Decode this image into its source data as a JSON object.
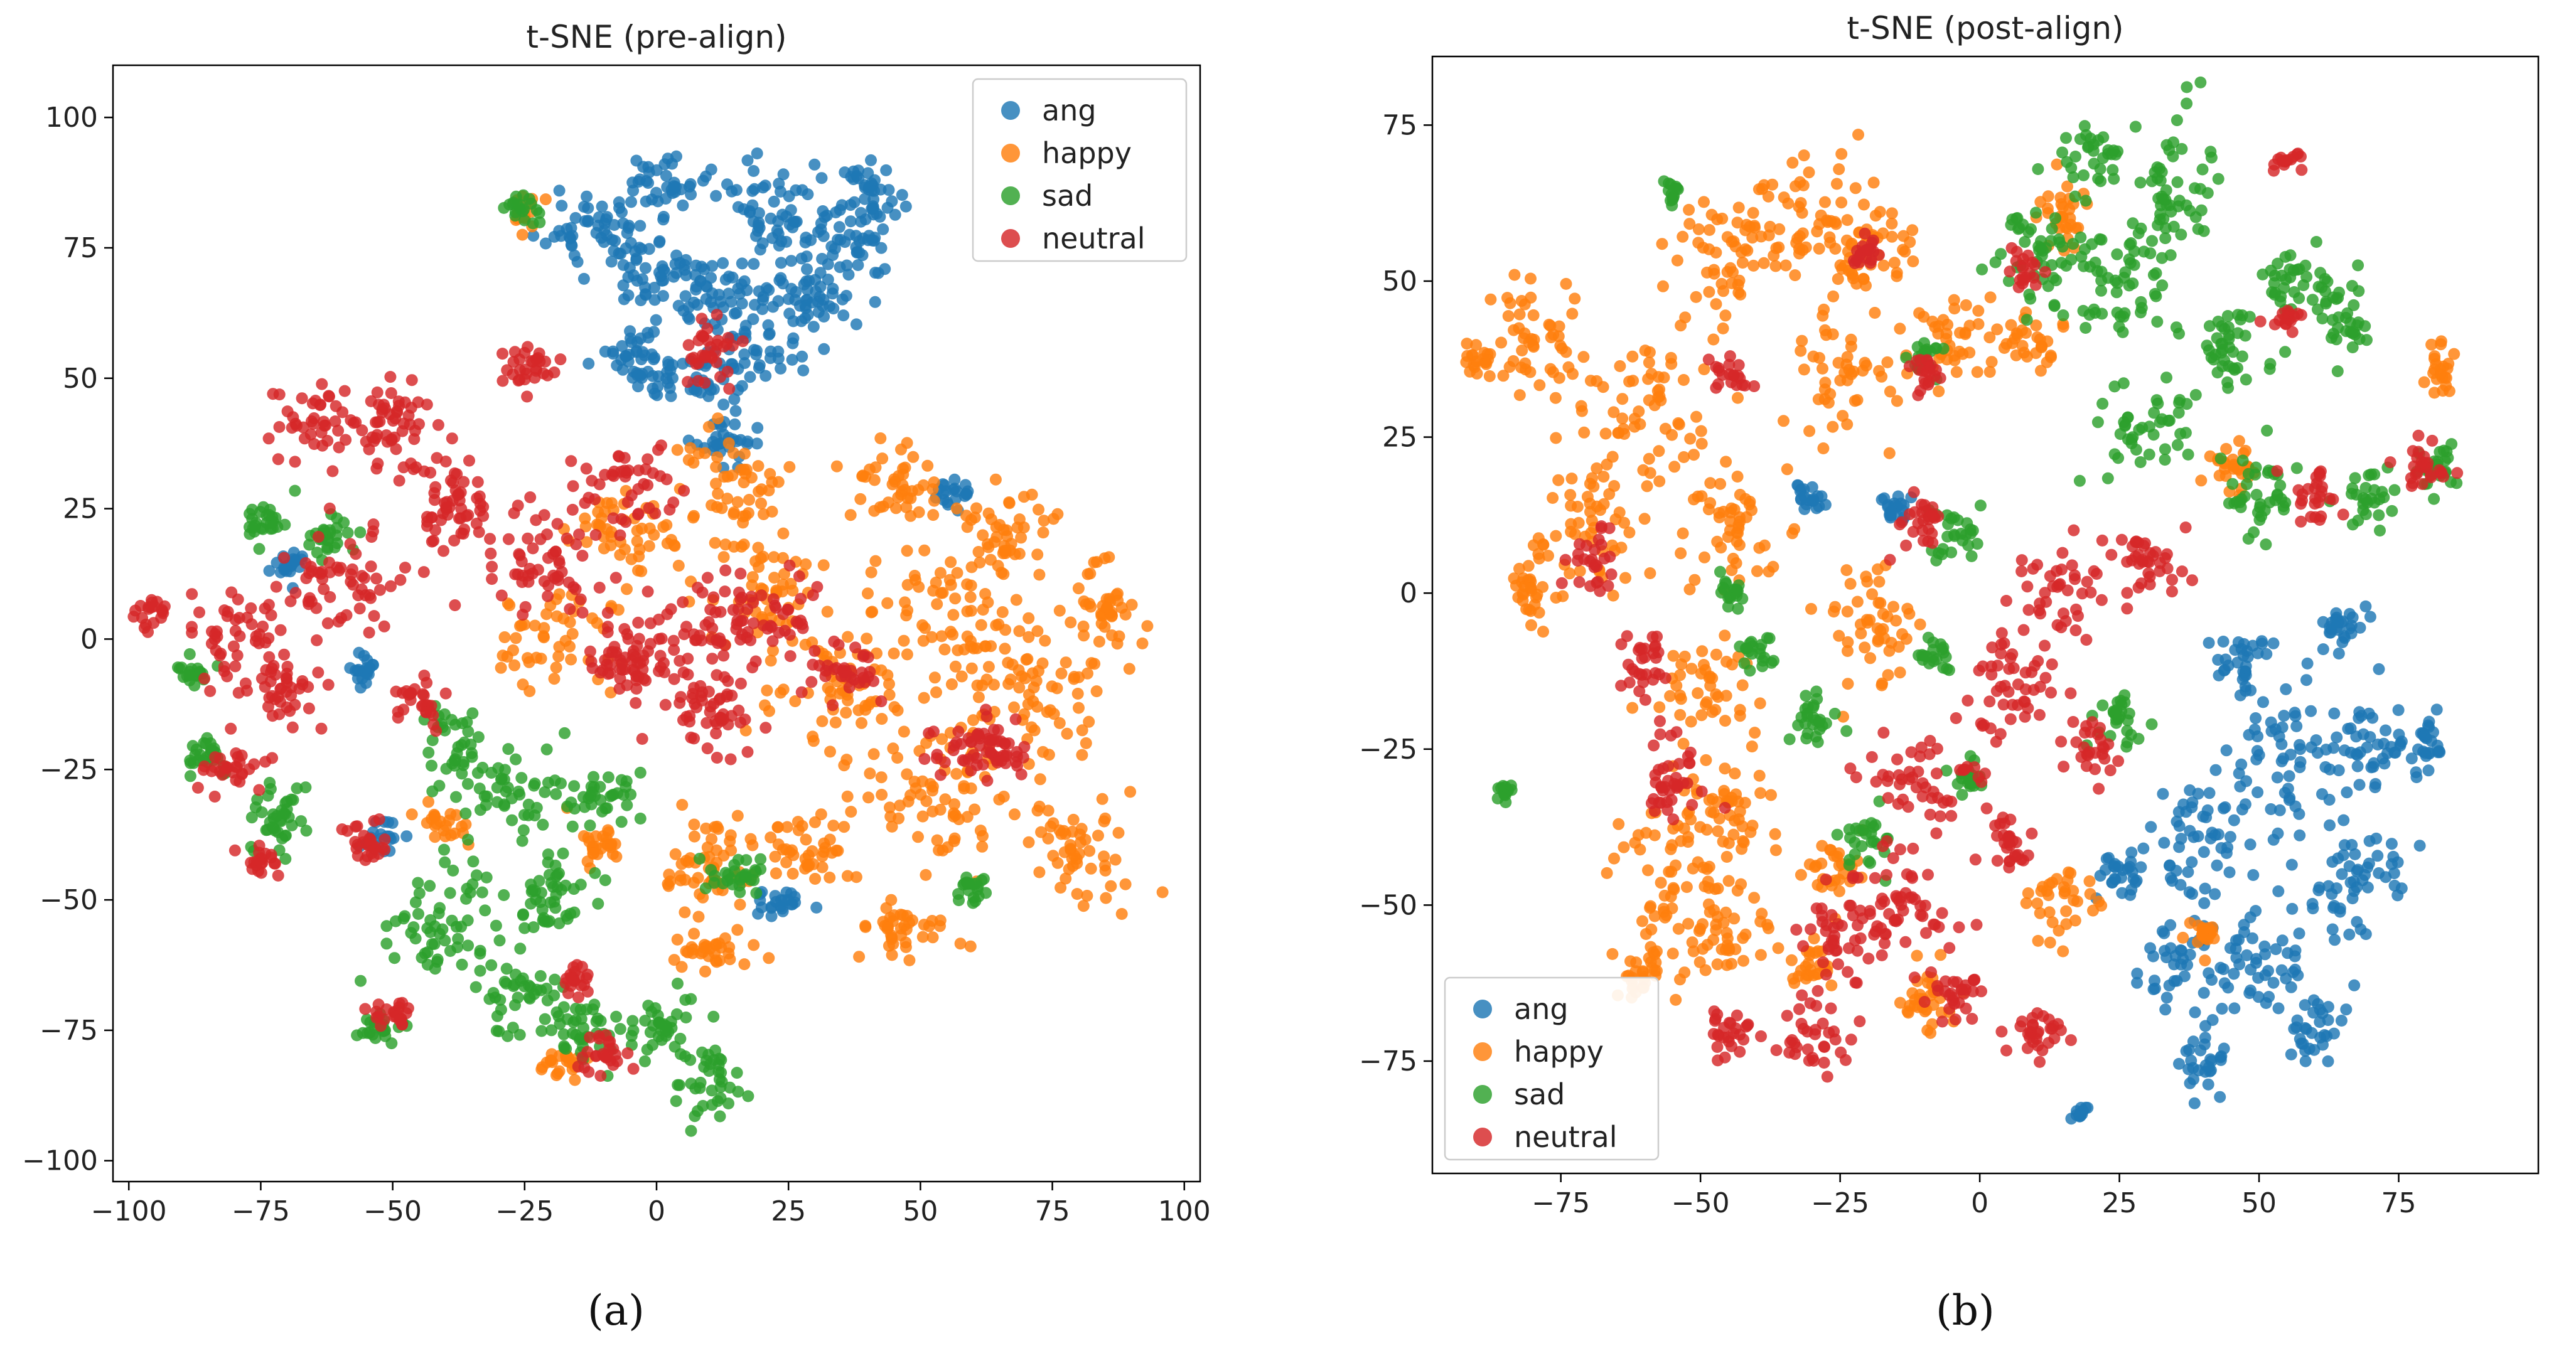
{
  "chart_data": [
    {
      "type": "scatter",
      "title": "t-SNE (pre-align)",
      "caption": "(a)",
      "xlabel": "",
      "ylabel": "",
      "xlim": [
        -103,
        103
      ],
      "ylim": [
        -104,
        110
      ],
      "xticks": [
        -100,
        -75,
        -50,
        -25,
        0,
        25,
        50,
        75,
        100
      ],
      "yticks": [
        -100,
        -75,
        -50,
        -25,
        0,
        25,
        50,
        75,
        100
      ],
      "grid": false,
      "legend_position": "top-right",
      "series": [
        {
          "name": "ang",
          "color": "#1f77b4",
          "clusters": [
            [
              -12,
              80,
              6,
              5
            ],
            [
              -2,
              72,
              7,
              6
            ],
            [
              10,
              65,
              6,
              6
            ],
            [
              22,
              82,
              8,
              8
            ],
            [
              35,
              75,
              7,
              6
            ],
            [
              18,
              55,
              6,
              5
            ],
            [
              5,
              50,
              5,
              4
            ],
            [
              40,
              85,
              5,
              5
            ],
            [
              28,
              65,
              6,
              5
            ],
            [
              -5,
              55,
              4,
              4
            ],
            [
              2,
              88,
              4,
              4
            ],
            [
              12,
              38,
              4,
              3
            ],
            [
              24,
              -50,
              3,
              2
            ],
            [
              -70,
              14,
              2,
              2
            ],
            [
              -52,
              -38,
              2,
              2
            ],
            [
              -55,
              -6,
              2,
              2
            ],
            [
              56,
              28,
              2,
              2
            ]
          ]
        },
        {
          "name": "happy",
          "color": "#ff7f0e",
          "clusters": [
            [
              45,
              30,
              6,
              5
            ],
            [
              55,
              5,
              10,
              9
            ],
            [
              70,
              -10,
              9,
              9
            ],
            [
              80,
              -40,
              7,
              7
            ],
            [
              55,
              -30,
              10,
              9
            ],
            [
              35,
              -10,
              9,
              8
            ],
            [
              20,
              10,
              8,
              7
            ],
            [
              10,
              -45,
              7,
              7
            ],
            [
              10,
              -60,
              5,
              3
            ],
            [
              -5,
              20,
              7,
              6
            ],
            [
              -20,
              0,
              7,
              6
            ],
            [
              30,
              -40,
              6,
              5
            ],
            [
              65,
              20,
              6,
              6
            ],
            [
              85,
              5,
              4,
              7
            ],
            [
              15,
              30,
              6,
              6
            ],
            [
              -10,
              -40,
              3,
              3
            ],
            [
              47,
              -55,
              6,
              4
            ],
            [
              -18,
              -82,
              3,
              2
            ],
            [
              -25,
              82,
              2,
              2
            ],
            [
              -40,
              -35,
              3,
              2
            ]
          ]
        },
        {
          "name": "sad",
          "color": "#2ca02c",
          "clusters": [
            [
              -28,
              -30,
              8,
              6
            ],
            [
              -40,
              -55,
              8,
              8
            ],
            [
              -20,
              -50,
              6,
              6
            ],
            [
              -15,
              -75,
              5,
              4
            ],
            [
              0,
              -75,
              5,
              4
            ],
            [
              10,
              -85,
              5,
              5
            ],
            [
              -38,
              -20,
              3,
              5
            ],
            [
              -72,
              -35,
              4,
              6
            ],
            [
              -85,
              -22,
              3,
              3
            ],
            [
              -88,
              -6,
              2,
              2
            ],
            [
              -62,
              20,
              3,
              3
            ],
            [
              -25,
              -68,
              5,
              4
            ],
            [
              15,
              -45,
              4,
              3
            ],
            [
              -25,
              82,
              2,
              2
            ],
            [
              -52,
              -75,
              3,
              2
            ],
            [
              -10,
              -30,
              4,
              3
            ],
            [
              60,
              -48,
              2,
              2
            ],
            [
              -75,
              22,
              3,
              3
            ]
          ]
        },
        {
          "name": "neutral",
          "color": "#d62728",
          "clusters": [
            [
              -50,
              40,
              8,
              7
            ],
            [
              -65,
              42,
              5,
              5
            ],
            [
              -38,
              25,
              7,
              6
            ],
            [
              -20,
              15,
              8,
              7
            ],
            [
              -60,
              10,
              8,
              7
            ],
            [
              -80,
              0,
              6,
              6
            ],
            [
              -70,
              -10,
              5,
              5
            ],
            [
              5,
              0,
              10,
              7
            ],
            [
              20,
              5,
              8,
              6
            ],
            [
              -5,
              30,
              6,
              5
            ],
            [
              10,
              -15,
              6,
              5
            ],
            [
              -25,
              52,
              4,
              3
            ],
            [
              10,
              55,
              4,
              4
            ],
            [
              -5,
              -5,
              5,
              4
            ],
            [
              -80,
              -25,
              4,
              3
            ],
            [
              -55,
              -40,
              3,
              3
            ],
            [
              -50,
              -72,
              3,
              2
            ],
            [
              -10,
              -80,
              3,
              3
            ],
            [
              60,
              -20,
              5,
              5
            ],
            [
              35,
              -5,
              4,
              4
            ],
            [
              -45,
              -12,
              3,
              3
            ],
            [
              -95,
              5,
              2,
              2
            ],
            [
              -75,
              -42,
              2,
              2
            ],
            [
              -15,
              -65,
              2,
              2
            ],
            [
              65,
              -22,
              3,
              2
            ]
          ]
        }
      ]
    },
    {
      "type": "scatter",
      "title": "t-SNE (post-align)",
      "caption": "(b)",
      "xlabel": "",
      "ylabel": "",
      "xlim": [
        -98,
        100
      ],
      "ylim": [
        -93,
        86
      ],
      "xticks": [
        -75,
        -50,
        -25,
        0,
        25,
        50,
        75
      ],
      "yticks": [
        -75,
        -50,
        -25,
        0,
        25,
        50,
        75
      ],
      "grid": false,
      "legend_position": "bottom-left",
      "series": [
        {
          "name": "ang",
          "color": "#1f77b4",
          "clusters": [
            [
              40,
              -40,
              8,
              8
            ],
            [
              55,
              -25,
              7,
              7
            ],
            [
              65,
              -45,
              7,
              7
            ],
            [
              50,
              -60,
              8,
              6
            ],
            [
              35,
              -60,
              4,
              5
            ],
            [
              40,
              -75,
              3,
              3
            ],
            [
              70,
              -25,
              4,
              5
            ],
            [
              80,
              -25,
              2,
              4
            ],
            [
              48,
              -12,
              4,
              4
            ],
            [
              60,
              -70,
              3,
              3
            ],
            [
              18,
              -83,
              1,
              1
            ],
            [
              25,
              -45,
              3,
              3
            ],
            [
              -15,
              14,
              2,
              2
            ],
            [
              -30,
              15,
              2,
              2
            ],
            [
              65,
              -5,
              3,
              3
            ]
          ]
        },
        {
          "name": "happy",
          "color": "#ff7f0e",
          "clusters": [
            [
              -80,
              40,
              6,
              6
            ],
            [
              -60,
              30,
              8,
              9
            ],
            [
              -45,
              55,
              7,
              7
            ],
            [
              -30,
              60,
              8,
              7
            ],
            [
              -25,
              35,
              6,
              6
            ],
            [
              -70,
              10,
              6,
              7
            ],
            [
              -45,
              10,
              7,
              7
            ],
            [
              -50,
              -15,
              6,
              5
            ],
            [
              -55,
              -45,
              7,
              8
            ],
            [
              -45,
              -55,
              5,
              5
            ],
            [
              -20,
              -5,
              6,
              6
            ],
            [
              -5,
              40,
              5,
              5
            ],
            [
              10,
              40,
              4,
              3
            ],
            [
              15,
              60,
              3,
              4
            ],
            [
              45,
              20,
              4,
              3
            ],
            [
              -80,
              0,
              3,
              4
            ],
            [
              -45,
              -35,
              6,
              6
            ],
            [
              -25,
              -45,
              4,
              3
            ],
            [
              -10,
              -65,
              4,
              4
            ],
            [
              15,
              -50,
              4,
              4
            ],
            [
              -60,
              -60,
              4,
              4
            ],
            [
              82,
              35,
              2,
              3
            ],
            [
              -20,
              55,
              6,
              5
            ],
            [
              40,
              -55,
              2,
              2
            ],
            [
              -30,
              -60,
              3,
              3
            ],
            [
              -90,
              38,
              2,
              2
            ]
          ]
        },
        {
          "name": "sad",
          "color": "#2ca02c",
          "clusters": [
            [
              10,
              55,
              6,
              6
            ],
            [
              25,
              50,
              7,
              7
            ],
            [
              35,
              65,
              6,
              8
            ],
            [
              30,
              27,
              6,
              5
            ],
            [
              45,
              40,
              5,
              5
            ],
            [
              20,
              70,
              4,
              4
            ],
            [
              55,
              50,
              4,
              3
            ],
            [
              65,
              45,
              4,
              5
            ],
            [
              82,
              20,
              3,
              3
            ],
            [
              70,
              15,
              3,
              3
            ],
            [
              50,
              15,
              5,
              5
            ],
            [
              -10,
              38,
              2,
              2
            ],
            [
              -30,
              -20,
              3,
              3
            ],
            [
              -20,
              -40,
              3,
              3
            ],
            [
              -8,
              -10,
              2,
              2
            ],
            [
              25,
              -20,
              3,
              3
            ],
            [
              -2,
              -30,
              2,
              2
            ],
            [
              -45,
              0,
              2,
              2
            ],
            [
              -40,
              -10,
              2,
              2
            ],
            [
              -85,
              -32,
              1,
              1
            ],
            [
              -55,
              64,
              1,
              1
            ],
            [
              -5,
              10,
              3,
              3
            ]
          ]
        },
        {
          "name": "neutral",
          "color": "#d62728",
          "clusters": [
            [
              5,
              -15,
              6,
              6
            ],
            [
              -10,
              -30,
              7,
              6
            ],
            [
              -15,
              -50,
              7,
              7
            ],
            [
              -25,
              -55,
              5,
              5
            ],
            [
              5,
              -40,
              3,
              3
            ],
            [
              15,
              0,
              5,
              5
            ],
            [
              30,
              5,
              5,
              4
            ],
            [
              -5,
              -65,
              4,
              3
            ],
            [
              10,
              -70,
              4,
              3
            ],
            [
              -55,
              -30,
              4,
              6
            ],
            [
              -30,
              -70,
              4,
              4
            ],
            [
              -45,
              -70,
              3,
              3
            ],
            [
              -60,
              -10,
              3,
              4
            ],
            [
              55,
              69,
              2,
              1
            ],
            [
              80,
              20,
              3,
              3
            ],
            [
              60,
              15,
              3,
              3
            ],
            [
              -70,
              5,
              3,
              3
            ],
            [
              -45,
              35,
              2,
              2
            ],
            [
              -10,
              35,
              2,
              2
            ],
            [
              20,
              -25,
              3,
              3
            ],
            [
              -10,
              12,
              3,
              3
            ],
            [
              55,
              44,
              2,
              1
            ],
            [
              -20,
              55,
              2,
              2
            ],
            [
              8,
              52,
              2,
              2
            ]
          ]
        }
      ]
    }
  ]
}
